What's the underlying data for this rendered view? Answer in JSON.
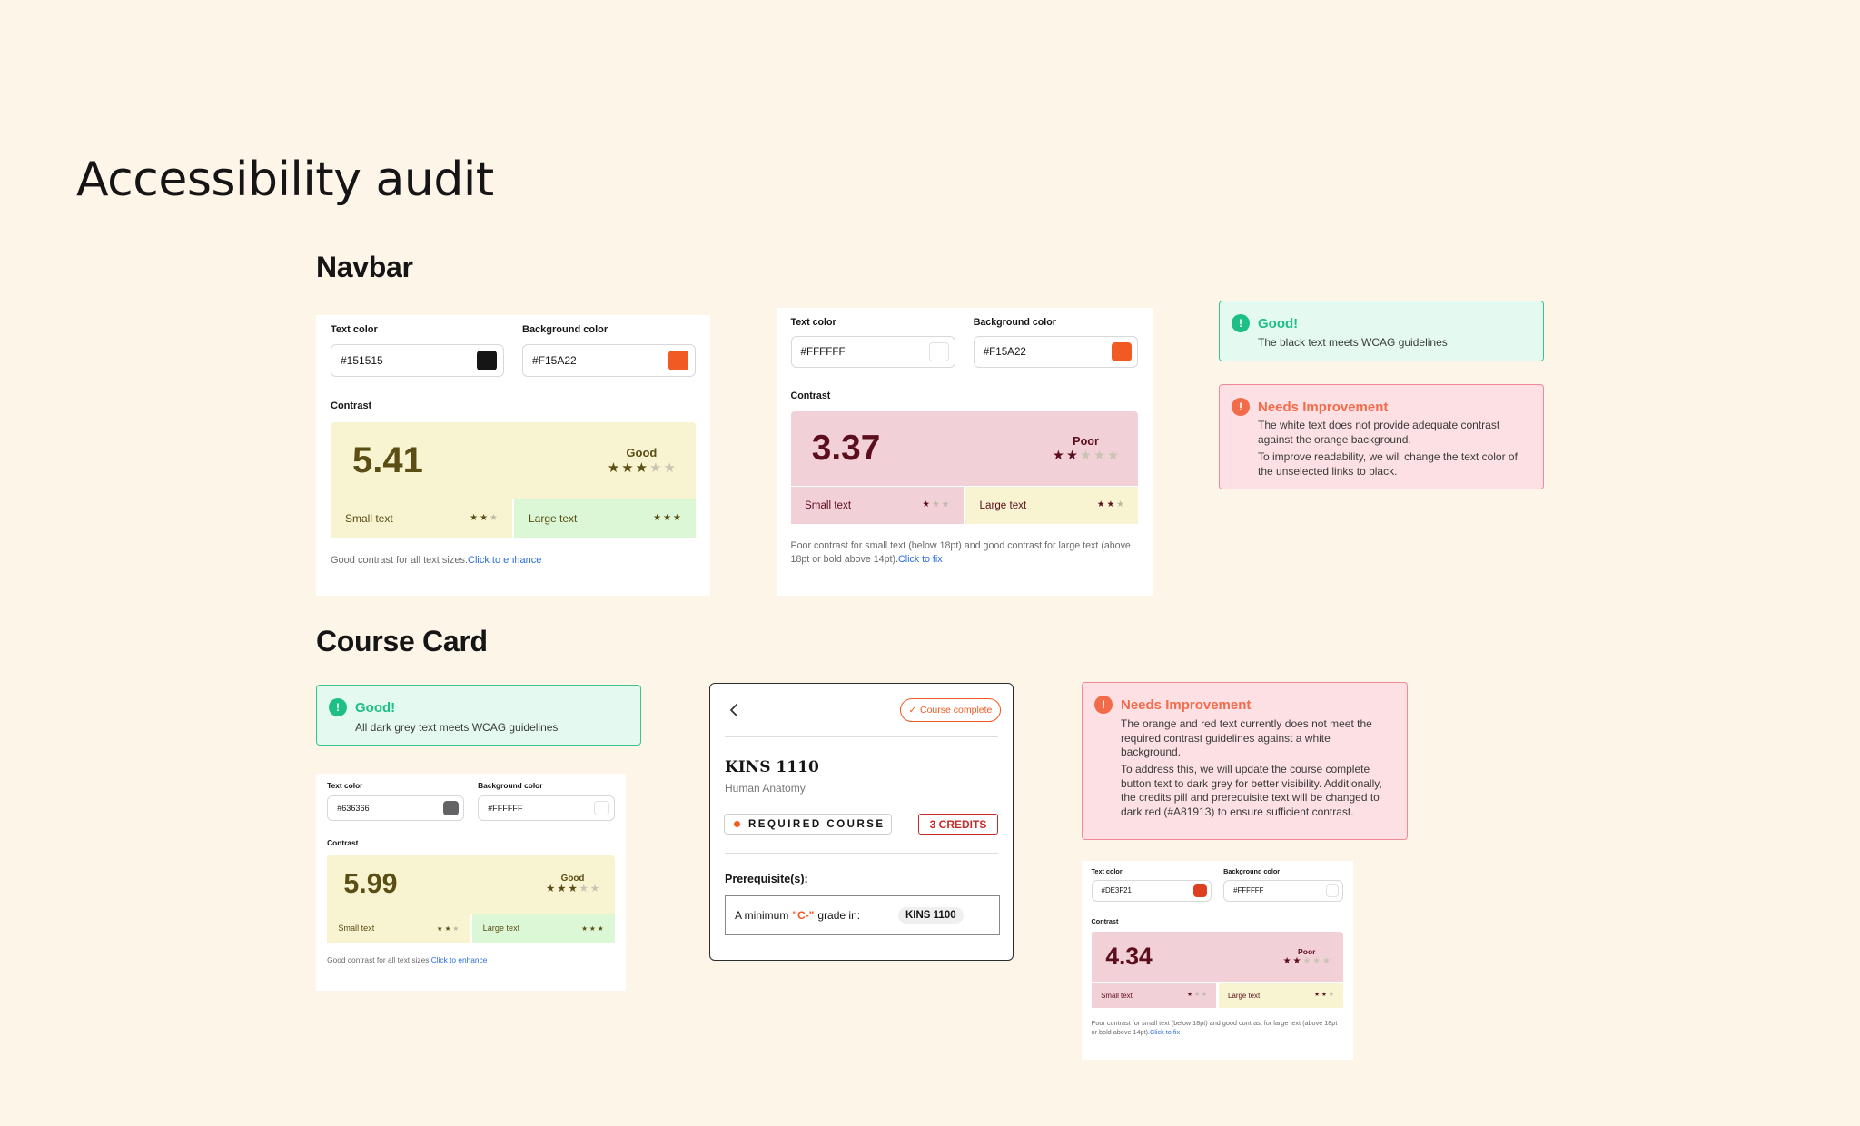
{
  "page_title": "Accessibility audit",
  "sections": {
    "navbar": "Navbar",
    "course_card": "Course Card"
  },
  "labels": {
    "text_color": "Text color",
    "background_color": "Background color",
    "contrast": "Contrast",
    "small_text": "Small text",
    "large_text": "Large text"
  },
  "checkers": [
    {
      "text_color": "#151515",
      "bg_color": "#F15A22",
      "ratio": "5.41",
      "rating": "Good",
      "rating_stars": 3,
      "small_stars": 2,
      "large_stars": 3,
      "note": "Good contrast for all text sizes.",
      "link": "Click to enhance",
      "colors": {
        "main_bg": "#F8F4D2",
        "main_fg": "#5A4E14",
        "small_bg": "#F8F4D2",
        "large_bg": "#DCF7D6"
      }
    },
    {
      "text_color": "#FFFFFF",
      "bg_color": "#F15A22",
      "ratio": "3.37",
      "rating": "Poor",
      "rating_stars": 2,
      "small_stars": 1,
      "large_stars": 2,
      "note": "Poor contrast for small text (below 18pt) and good contrast for large text (above 18pt or bold above 14pt).",
      "link": "Click to fix",
      "colors": {
        "main_bg": "#F2D0D7",
        "main_fg": "#5C0E1E",
        "small_bg": "#F2D0D7",
        "large_bg": "#F8F4D2"
      }
    },
    {
      "text_color": "#636366",
      "bg_color": "#FFFFFF",
      "ratio": "5.99",
      "rating": "Good",
      "rating_stars": 3,
      "small_stars": 2,
      "large_stars": 3,
      "note": "Good contrast for all text sizes.",
      "link": "Click to enhance",
      "colors": {
        "main_bg": "#F8F4D2",
        "main_fg": "#5A4E14",
        "small_bg": "#F8F4D2",
        "large_bg": "#DCF7D6"
      }
    },
    {
      "text_color": "#DE3F21",
      "bg_color": "#FFFFFF",
      "ratio": "4.34",
      "rating": "Poor",
      "rating_stars": 2,
      "small_stars": 1,
      "large_stars": 2,
      "note": "Poor contrast for small text (below 18pt) and good contrast for large text (above 18pt or bold above 14pt).",
      "link": "Click to fix",
      "colors": {
        "main_bg": "#F2D0D7",
        "main_fg": "#5C0E1E",
        "small_bg": "#F2D0D7",
        "large_bg": "#F8F4D2"
      }
    }
  ],
  "callouts": {
    "navbar_good": {
      "badge": "!",
      "title": "Good!",
      "body": "The black text meets WCAG guidelines"
    },
    "navbar_bad": {
      "badge": "!",
      "title": "Needs Improvement",
      "body1": "The white text does not provide adequate contrast against the orange background.",
      "body2": "To improve readability, we will change the text color of the unselected links to black."
    },
    "card_good": {
      "badge": "!",
      "title": "Good!",
      "body": "All dark grey text meets WCAG guidelines"
    },
    "card_bad": {
      "badge": "!",
      "title": "Needs Improvement",
      "body1": "The orange and red text currently does not meet the required contrast guidelines against a white background.",
      "body2": "To address this, we will update the course complete button text to dark grey for better visibility. Additionally, the credits pill and prerequisite text will be changed to dark red (#A81913) to ensure sufficient contrast."
    }
  },
  "course": {
    "complete_label": "Course complete",
    "code": "KINS 1110",
    "name": "Human Anatomy",
    "required": "REQUIRED COURSE",
    "credits": "3 CREDITS",
    "prereq_title": "Prerequisite(s):",
    "prereq_prefix": "A minimum",
    "prereq_grade": "\"C-\"",
    "prereq_suffix": "grade in:",
    "prereq_course": "KINS 1100"
  },
  "colors": {
    "good_green": "#1DBF85",
    "bad_orange": "#F26B4A",
    "accent_orange": "#F15A22",
    "credit_red": "#C42B2B"
  }
}
